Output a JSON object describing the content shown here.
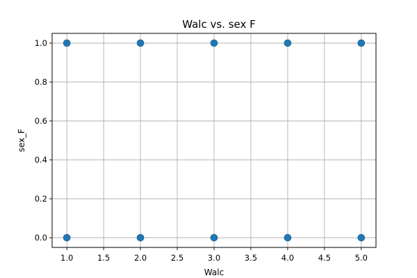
{
  "chart_data": {
    "type": "scatter",
    "title": "Walc vs. sex F",
    "xlabel": "Walc",
    "ylabel": "sex_F",
    "xlim": [
      0.8,
      5.2
    ],
    "ylim": [
      -0.05,
      1.05
    ],
    "xticks": [
      1.0,
      1.5,
      2.0,
      2.5,
      3.0,
      3.5,
      4.0,
      4.5,
      5.0
    ],
    "xtick_labels": [
      "1.0",
      "1.5",
      "2.0",
      "2.5",
      "3.0",
      "3.5",
      "4.0",
      "4.5",
      "5.0"
    ],
    "yticks": [
      0.0,
      0.2,
      0.4,
      0.6,
      0.8,
      1.0
    ],
    "ytick_labels": [
      "0.0",
      "0.2",
      "0.4",
      "0.6",
      "0.8",
      "1.0"
    ],
    "grid": true,
    "point_color": "#1f77b4",
    "points": [
      {
        "x": 1,
        "y": 1
      },
      {
        "x": 2,
        "y": 1
      },
      {
        "x": 3,
        "y": 1
      },
      {
        "x": 4,
        "y": 1
      },
      {
        "x": 5,
        "y": 1
      },
      {
        "x": 1,
        "y": 0
      },
      {
        "x": 2,
        "y": 0
      },
      {
        "x": 3,
        "y": 0
      },
      {
        "x": 4,
        "y": 0
      },
      {
        "x": 5,
        "y": 0
      }
    ]
  }
}
